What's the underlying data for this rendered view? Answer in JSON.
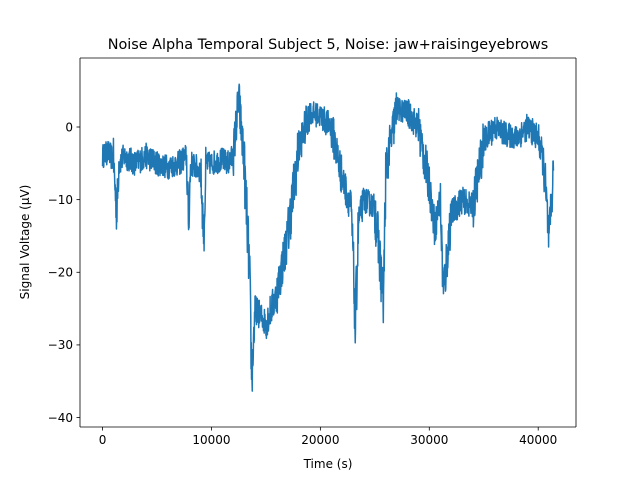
{
  "chart_data": {
    "type": "line",
    "title": "Noise Alpha Temporal Subject 5, Noise: jaw+raisingeyebrows",
    "xlabel": "Time (s)",
    "ylabel": "Signal Voltage (μV)",
    "xlim": [
      -2070,
      43470
    ],
    "ylim": [
      -41.3,
      9.5
    ],
    "x_ticks": [
      0,
      10000,
      20000,
      30000,
      40000
    ],
    "x_tick_labels": [
      "0",
      "10000",
      "20000",
      "30000",
      "40000"
    ],
    "y_ticks": [
      -40,
      -30,
      -20,
      -10,
      0
    ],
    "y_tick_labels": [
      "−40",
      "−30",
      "−20",
      "−10",
      "0"
    ],
    "grid": false,
    "series": [
      {
        "color": "#1f77b4",
        "x": [
          0,
          500,
          1000,
          1300,
          1500,
          2000,
          3000,
          4000,
          5000,
          6000,
          7000,
          7700,
          7900,
          8100,
          9000,
          9300,
          9500,
          10000,
          11000,
          11500,
          12000,
          12500,
          13000,
          13500,
          13700,
          14000,
          15000,
          16000,
          17000,
          18000,
          19000,
          20000,
          21000,
          22000,
          22800,
          23000,
          23200,
          23500,
          24000,
          25000,
          25800,
          26000,
          27000,
          28000,
          29000,
          30000,
          30500,
          31000,
          31300,
          32000,
          33000,
          34000,
          35000,
          36000,
          37000,
          38000,
          39000,
          40000,
          40500,
          41000,
          41400
        ],
        "y": [
          -4,
          -3.5,
          -4.5,
          -12,
          -5,
          -4,
          -5,
          -4,
          -5,
          -5.5,
          -5,
          -4,
          -13,
          -5,
          -6,
          -15,
          -5,
          -5,
          -4.5,
          -5,
          -4,
          4,
          -5,
          -20,
          -35,
          -25,
          -27,
          -23,
          -15,
          -3,
          2,
          1.5,
          0,
          -7,
          -11,
          -17,
          -28,
          -13,
          -10,
          -11,
          -24,
          -6,
          2.5,
          2,
          0,
          -8,
          -14,
          -10,
          -23,
          -12,
          -10,
          -11,
          -2,
          0,
          -1,
          -1.5,
          0,
          -1.5,
          -5,
          -16,
          -6
        ]
      }
    ]
  }
}
